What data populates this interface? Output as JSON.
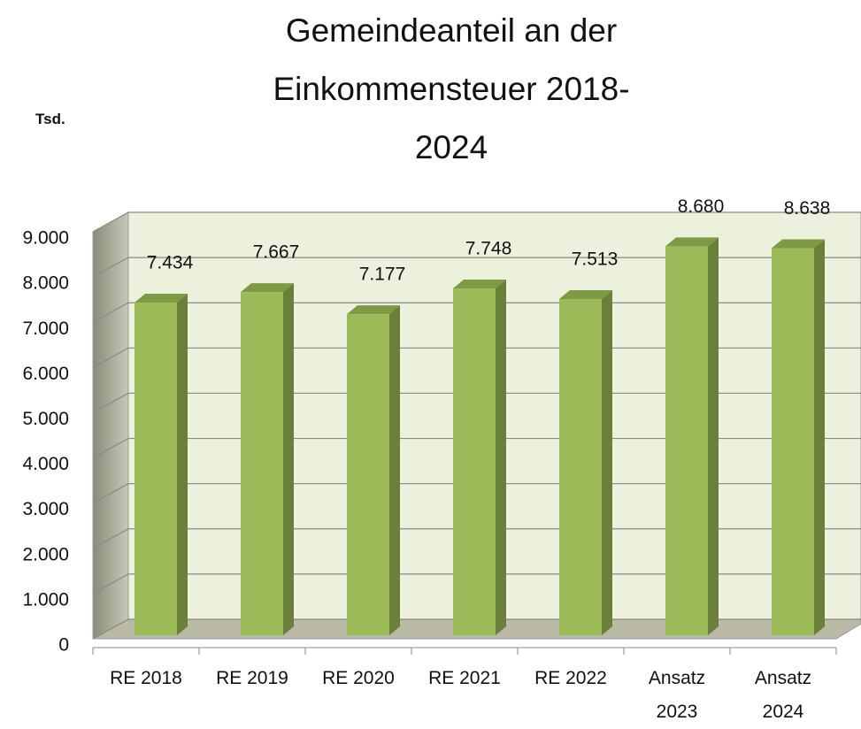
{
  "chart_data": {
    "type": "bar3d",
    "title": "Gemeindeanteil an der Einkommensteuer 2018- 2024",
    "y_unit_label": "Tsd.",
    "categories": [
      "RE 2018",
      "RE 2019",
      "RE 2020",
      "RE 2021",
      "RE 2022",
      "Ansatz\n2023",
      "Ansatz\n2024"
    ],
    "values": [
      7434,
      7667,
      7177,
      7748,
      7513,
      8680,
      8638
    ],
    "value_labels": [
      "7.434",
      "7.667",
      "7.177",
      "7.748",
      "7.513",
      "8.680",
      "8.638"
    ],
    "color": "#9bbb59",
    "ylim": [
      0,
      9000
    ],
    "yticks": [
      0,
      {
        "value": 1000,
        "label": "1.000"
      },
      {
        "value": 2000,
        "label": "2.000"
      },
      {
        "value": 3000,
        "label": "3.000"
      },
      {
        "value": 4000,
        "label": "4.000"
      },
      {
        "value": 5000,
        "label": "5.000"
      },
      {
        "value": 6000,
        "label": "6.000"
      },
      {
        "value": 7000,
        "label": "7.000"
      },
      {
        "value": 8000,
        "label": "8.000"
      },
      {
        "value": 9000,
        "label": "9.000"
      }
    ],
    "grid": true
  }
}
